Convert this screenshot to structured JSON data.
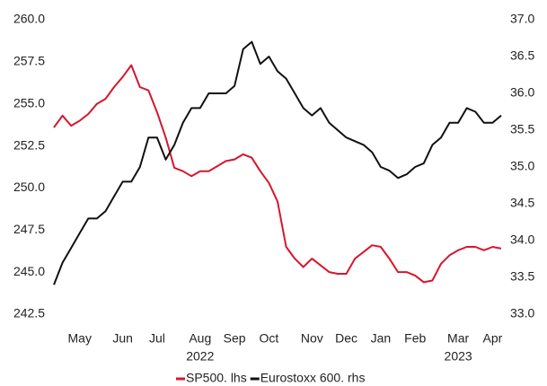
{
  "chart_data": {
    "type": "line",
    "categories": [
      null,
      null,
      null,
      "May",
      null,
      null,
      null,
      null,
      "Jun",
      null,
      null,
      null,
      "Jul",
      null,
      null,
      null,
      null,
      "Aug",
      null,
      null,
      null,
      "Sep",
      null,
      null,
      null,
      "Oct",
      null,
      null,
      null,
      null,
      "Nov",
      null,
      null,
      null,
      "Dec",
      null,
      null,
      null,
      "Jan",
      null,
      null,
      null,
      "Feb",
      null,
      null,
      null,
      null,
      "Mar",
      null,
      null,
      null,
      "Apr",
      null
    ],
    "year_labels": [
      "2022",
      "2023"
    ],
    "series": [
      {
        "name": "SP500. lhs",
        "color": "#d7162e",
        "axis": "y",
        "values": [
          253.6,
          254.3,
          253.7,
          254.0,
          254.4,
          255.0,
          255.3,
          256.0,
          256.6,
          257.3,
          256.0,
          255.8,
          254.5,
          253.0,
          251.2,
          251.0,
          250.7,
          251.0,
          251.0,
          251.3,
          251.6,
          251.7,
          252.0,
          251.8,
          251.0,
          250.3,
          249.2,
          246.5,
          245.8,
          245.3,
          245.8,
          245.4,
          245.0,
          244.9,
          244.9,
          245.8,
          246.2,
          246.6,
          246.5,
          245.8,
          245.0,
          245.0,
          244.8,
          244.4,
          244.5,
          245.5,
          246.0,
          246.3,
          246.5,
          246.5,
          246.3,
          246.5,
          246.4
        ]
      },
      {
        "name": "Eurostoxx 600. rhs",
        "color": "#111111",
        "axis": "y2",
        "values": [
          33.4,
          33.7,
          33.9,
          34.1,
          34.3,
          34.3,
          34.4,
          34.6,
          34.8,
          34.8,
          35.0,
          35.4,
          35.4,
          35.1,
          35.3,
          35.6,
          35.8,
          35.8,
          36.0,
          36.0,
          36.0,
          36.1,
          36.6,
          36.7,
          36.4,
          36.5,
          36.3,
          36.2,
          36.0,
          35.8,
          35.7,
          35.8,
          35.6,
          35.5,
          35.4,
          35.35,
          35.3,
          35.2,
          35.0,
          34.95,
          34.85,
          34.9,
          35.0,
          35.05,
          35.3,
          35.4,
          35.6,
          35.6,
          35.8,
          35.75,
          35.6,
          35.6,
          35.7
        ]
      }
    ],
    "ylim": [
      242.5,
      260
    ],
    "yticks": [
      242.5,
      {
        "value": 245,
        "label": "245.0"
      },
      247.5,
      {
        "value": 250,
        "label": "250.0"
      },
      252.5,
      {
        "value": 255,
        "label": "255.0"
      },
      257.5,
      {
        "value": 260,
        "label": "260.0"
      }
    ],
    "y2lim": [
      33,
      37
    ],
    "y2ticks": [
      {
        "value": 33,
        "label": "33.0"
      },
      33.5,
      {
        "value": 34,
        "label": "34.0"
      },
      34.5,
      {
        "value": 35,
        "label": "35.0"
      },
      35.5,
      {
        "value": 36,
        "label": "36.0"
      },
      36.5,
      {
        "value": 37,
        "label": "37.0"
      }
    ],
    "legend": "bottom"
  }
}
